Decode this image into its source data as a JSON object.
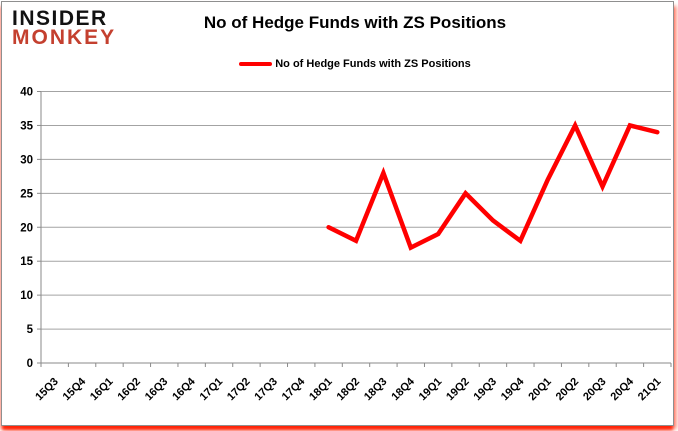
{
  "header": {
    "logo_line1": "INSIDER",
    "logo_line2": "MONKEY",
    "title": "No of Hedge Funds with ZS Positions"
  },
  "legend": {
    "label": "No of Hedge Funds with ZS Positions"
  },
  "colors": {
    "line": "#ff0000",
    "logo_black": "#121212",
    "logo_red": "#c4402f",
    "grid": "#a3a3a3",
    "axis": "#8a8a8a",
    "text": "#000000",
    "glow_red": "#ff2400"
  },
  "chart_data": {
    "type": "line",
    "title": "No of Hedge Funds with ZS Positions",
    "categories": [
      "15Q3",
      "15Q4",
      "16Q1",
      "16Q2",
      "16Q3",
      "16Q4",
      "17Q1",
      "17Q2",
      "17Q3",
      "17Q4",
      "18Q1",
      "18Q2",
      "18Q3",
      "18Q4",
      "19Q1",
      "19Q2",
      "19Q3",
      "19Q4",
      "20Q1",
      "20Q2",
      "20Q3",
      "20Q4",
      "21Q1"
    ],
    "series": [
      {
        "name": "No of Hedge Funds with ZS Positions",
        "color": "#ff0000",
        "values": [
          null,
          null,
          null,
          null,
          null,
          null,
          null,
          null,
          null,
          null,
          20,
          18,
          28,
          17,
          19,
          25,
          21,
          18,
          27,
          35,
          26,
          35,
          34
        ]
      }
    ],
    "xlabel": "",
    "ylabel": "",
    "ylim": [
      0,
      40
    ],
    "ytick_step": 5,
    "grid": true,
    "legend_position": "top-center"
  }
}
